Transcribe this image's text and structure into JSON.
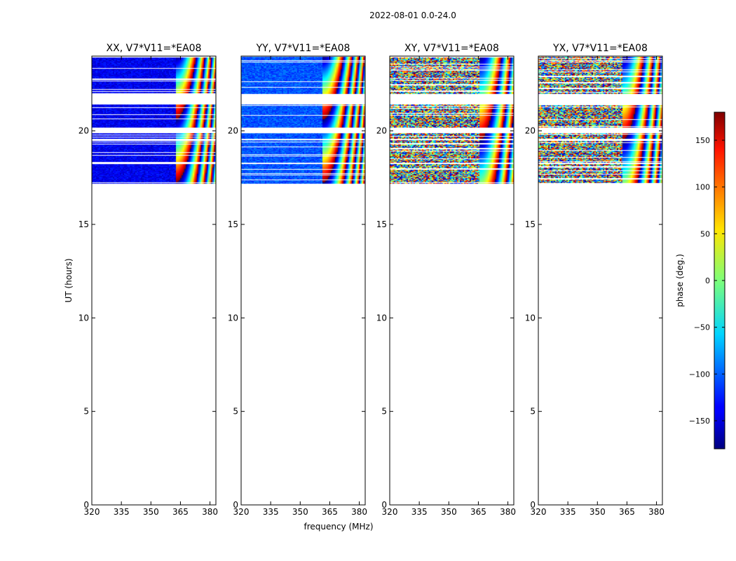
{
  "figure_title": "2022-08-01 0.0-24.0",
  "chart_data": {
    "type": "heatmap",
    "title": "2022-08-01 0.0-24.0",
    "xlabel": "frequency (MHz)",
    "ylabel": "UT (hours)",
    "xlim": [
      320,
      383
    ],
    "ylim": [
      0,
      24
    ],
    "xticks": [
      320,
      335,
      350,
      365,
      380
    ],
    "yticks": [
      0,
      5,
      10,
      15,
      20
    ],
    "panels": [
      {
        "title": "XX, V7*V11=*EA08",
        "pol": "XX",
        "character": "coherent",
        "base_phase": -140,
        "fringe_start_mhz": 362
      },
      {
        "title": "YY, V7*V11=*EA08",
        "pol": "YY",
        "character": "coherent",
        "base_phase": -105,
        "fringe_start_mhz": 361
      },
      {
        "title": "XY, V7*V11=*EA08",
        "pol": "XY",
        "character": "noise",
        "base_phase": 0,
        "fringe_start_mhz": 365
      },
      {
        "title": "YX, V7*V11=*EA08",
        "pol": "YX",
        "character": "noise",
        "base_phase": 0,
        "fringe_start_mhz": 362
      }
    ],
    "data_blocks_hours": [
      [
        17.2,
        18.2
      ],
      [
        18.3,
        19.5
      ],
      [
        19.6,
        19.85
      ],
      [
        20.2,
        21.4
      ],
      [
        22.0,
        23.95
      ]
    ],
    "colorbar": {
      "label": "phase (deg.)",
      "range": [
        -180,
        180
      ],
      "ticks": [
        -150,
        -100,
        -50,
        0,
        50,
        100,
        150
      ],
      "tick_labels": [
        "−150",
        "−100",
        "−50",
        "0",
        "50",
        "100",
        "150"
      ],
      "colormap": "jet"
    }
  }
}
